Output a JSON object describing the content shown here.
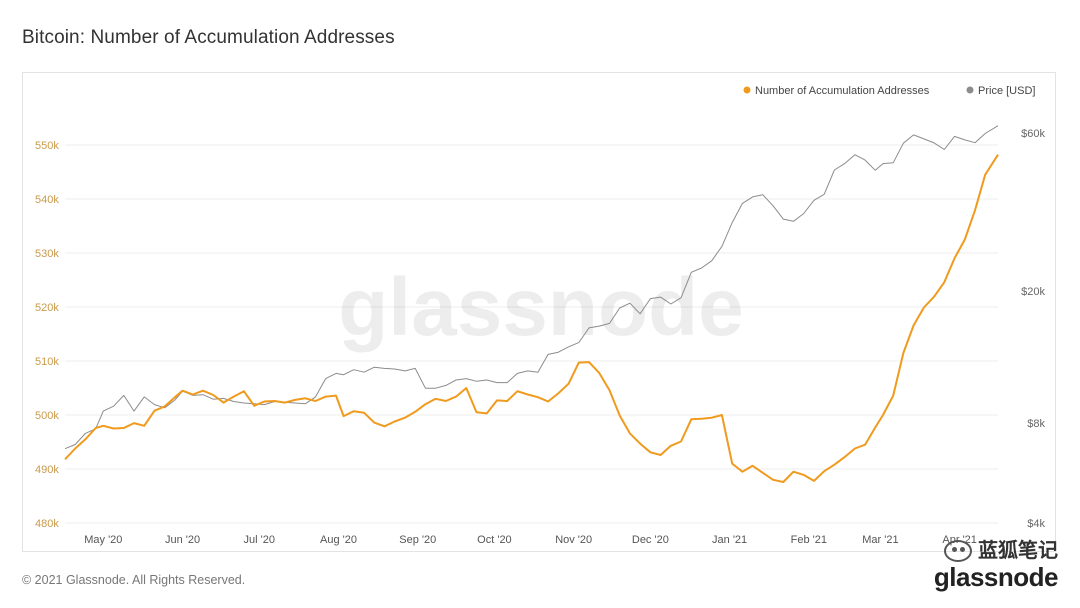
{
  "page": {
    "title": "Bitcoin: Number of Accumulation Addresses",
    "copyright": "© 2021 Glassnode. All Rights Reserved.",
    "watermark": "glassnode",
    "brand_cn": "蓝狐笔记",
    "brand_logo": "glassnode"
  },
  "colors": {
    "accumulation": "#f09a1e",
    "price": "#8c8c8c",
    "grid": "#ececec",
    "left_axis_text": "#c99a4a",
    "right_axis_text": "#666666"
  },
  "chart_data": {
    "type": "line",
    "title": "Bitcoin: Number of Accumulation Addresses",
    "legend_position": "top-right",
    "grid": true,
    "x_ticks": [
      "May '20",
      "Jun '20",
      "Jul '20",
      "Aug '20",
      "Sep '20",
      "Oct '20",
      "Nov '20",
      "Dec '20",
      "Jan '21",
      "Feb '21",
      "Mar '21",
      "Apr '21"
    ],
    "x_range": [
      "2020-04-16",
      "2021-04-16"
    ],
    "y_left": {
      "ticks": [
        480000,
        490000,
        500000,
        510000,
        520000,
        530000,
        540000,
        550000
      ],
      "tick_labels": [
        "480k",
        "490k",
        "500k",
        "510k",
        "520k",
        "530k",
        "540k",
        "550k"
      ],
      "range": [
        480000,
        555000
      ]
    },
    "y_right": {
      "scale": "log",
      "ticks": [
        4000,
        8000,
        20000,
        60000
      ],
      "tick_labels": [
        "$4k",
        "$8k",
        "$20k",
        "$60k"
      ],
      "range": [
        4000,
        60000
      ]
    },
    "series": [
      {
        "name": "Number of Accumulation Addresses",
        "axis": "left",
        "points": [
          [
            "2020-04-16",
            491800
          ],
          [
            "2020-04-20",
            493800
          ],
          [
            "2020-04-24",
            495500
          ],
          [
            "2020-04-28",
            497600
          ],
          [
            "2020-05-01",
            498000
          ],
          [
            "2020-05-05",
            497500
          ],
          [
            "2020-05-09",
            497600
          ],
          [
            "2020-05-13",
            498500
          ],
          [
            "2020-05-17",
            498000
          ],
          [
            "2020-05-21",
            500800
          ],
          [
            "2020-05-25",
            501600
          ],
          [
            "2020-05-29",
            503300
          ],
          [
            "2020-06-01",
            504500
          ],
          [
            "2020-06-05",
            503800
          ],
          [
            "2020-06-09",
            504500
          ],
          [
            "2020-06-13",
            503700
          ],
          [
            "2020-06-17",
            502300
          ],
          [
            "2020-06-21",
            503400
          ],
          [
            "2020-06-25",
            504400
          ],
          [
            "2020-06-29",
            501700
          ],
          [
            "2020-07-03",
            502500
          ],
          [
            "2020-07-07",
            502600
          ],
          [
            "2020-07-11",
            502300
          ],
          [
            "2020-07-15",
            502800
          ],
          [
            "2020-07-19",
            503100
          ],
          [
            "2020-07-23",
            502600
          ],
          [
            "2020-07-27",
            503400
          ],
          [
            "2020-07-31",
            503600
          ],
          [
            "2020-08-03",
            499800
          ],
          [
            "2020-08-07",
            500700
          ],
          [
            "2020-08-11",
            500400
          ],
          [
            "2020-08-15",
            498600
          ],
          [
            "2020-08-19",
            497900
          ],
          [
            "2020-08-23",
            498800
          ],
          [
            "2020-08-27",
            499500
          ],
          [
            "2020-08-31",
            500600
          ],
          [
            "2020-09-04",
            502000
          ],
          [
            "2020-09-08",
            503000
          ],
          [
            "2020-09-12",
            502600
          ],
          [
            "2020-09-16",
            503400
          ],
          [
            "2020-09-20",
            505000
          ],
          [
            "2020-09-24",
            500500
          ],
          [
            "2020-09-28",
            500300
          ],
          [
            "2020-10-02",
            502700
          ],
          [
            "2020-10-06",
            502600
          ],
          [
            "2020-10-10",
            504400
          ],
          [
            "2020-10-14",
            503800
          ],
          [
            "2020-10-18",
            503300
          ],
          [
            "2020-10-22",
            502500
          ],
          [
            "2020-10-26",
            504000
          ],
          [
            "2020-10-30",
            505800
          ],
          [
            "2020-11-03",
            509700
          ],
          [
            "2020-11-07",
            509800
          ],
          [
            "2020-11-11",
            507800
          ],
          [
            "2020-11-15",
            504600
          ],
          [
            "2020-11-19",
            499900
          ],
          [
            "2020-11-23",
            496600
          ],
          [
            "2020-11-27",
            494700
          ],
          [
            "2020-12-01",
            493100
          ],
          [
            "2020-12-05",
            492600
          ],
          [
            "2020-12-09",
            494300
          ],
          [
            "2020-12-13",
            495100
          ],
          [
            "2020-12-17",
            499200
          ],
          [
            "2020-12-21",
            499300
          ],
          [
            "2020-12-25",
            499500
          ],
          [
            "2020-12-29",
            500000
          ],
          [
            "2021-01-02",
            491000
          ],
          [
            "2021-01-06",
            489500
          ],
          [
            "2021-01-10",
            490600
          ],
          [
            "2021-01-14",
            489300
          ],
          [
            "2021-01-18",
            488000
          ],
          [
            "2021-01-22",
            487600
          ],
          [
            "2021-01-26",
            489500
          ],
          [
            "2021-01-30",
            488900
          ],
          [
            "2021-02-03",
            487800
          ],
          [
            "2021-02-07",
            489600
          ],
          [
            "2021-02-11",
            490800
          ],
          [
            "2021-02-15",
            492200
          ],
          [
            "2021-02-19",
            493800
          ],
          [
            "2021-02-23",
            494500
          ],
          [
            "2021-02-27",
            497700
          ],
          [
            "2021-03-02",
            500000
          ],
          [
            "2021-03-06",
            503600
          ],
          [
            "2021-03-10",
            511500
          ],
          [
            "2021-03-14",
            516600
          ],
          [
            "2021-03-18",
            519900
          ],
          [
            "2021-03-22",
            521900
          ],
          [
            "2021-03-26",
            524600
          ],
          [
            "2021-03-30",
            529000
          ],
          [
            "2021-04-03",
            532500
          ],
          [
            "2021-04-07",
            537900
          ],
          [
            "2021-04-11",
            544500
          ],
          [
            "2021-04-16",
            548200
          ]
        ]
      },
      {
        "name": "Price [USD]",
        "axis": "right",
        "points": [
          [
            "2020-04-16",
            6700
          ],
          [
            "2020-04-20",
            6900
          ],
          [
            "2020-04-24",
            7450
          ],
          [
            "2020-04-28",
            7700
          ],
          [
            "2020-05-01",
            8700
          ],
          [
            "2020-05-05",
            9000
          ],
          [
            "2020-05-09",
            9700
          ],
          [
            "2020-05-13",
            8700
          ],
          [
            "2020-05-17",
            9600
          ],
          [
            "2020-05-21",
            9100
          ],
          [
            "2020-05-25",
            8900
          ],
          [
            "2020-05-29",
            9400
          ],
          [
            "2020-06-01",
            10000
          ],
          [
            "2020-06-05",
            9700
          ],
          [
            "2020-06-09",
            9750
          ],
          [
            "2020-06-13",
            9450
          ],
          [
            "2020-06-17",
            9500
          ],
          [
            "2020-06-21",
            9300
          ],
          [
            "2020-06-25",
            9200
          ],
          [
            "2020-06-29",
            9150
          ],
          [
            "2020-07-03",
            9100
          ],
          [
            "2020-07-07",
            9300
          ],
          [
            "2020-07-11",
            9250
          ],
          [
            "2020-07-15",
            9200
          ],
          [
            "2020-07-19",
            9150
          ],
          [
            "2020-07-23",
            9600
          ],
          [
            "2020-07-27",
            10900
          ],
          [
            "2020-07-31",
            11300
          ],
          [
            "2020-08-03",
            11200
          ],
          [
            "2020-08-07",
            11600
          ],
          [
            "2020-08-11",
            11400
          ],
          [
            "2020-08-15",
            11800
          ],
          [
            "2020-08-19",
            11700
          ],
          [
            "2020-08-23",
            11650
          ],
          [
            "2020-08-27",
            11500
          ],
          [
            "2020-08-31",
            11700
          ],
          [
            "2020-09-04",
            10200
          ],
          [
            "2020-09-08",
            10200
          ],
          [
            "2020-09-12",
            10400
          ],
          [
            "2020-09-16",
            10800
          ],
          [
            "2020-09-20",
            10900
          ],
          [
            "2020-09-24",
            10700
          ],
          [
            "2020-09-28",
            10800
          ],
          [
            "2020-10-02",
            10600
          ],
          [
            "2020-10-06",
            10600
          ],
          [
            "2020-10-10",
            11300
          ],
          [
            "2020-10-14",
            11500
          ],
          [
            "2020-10-18",
            11400
          ],
          [
            "2020-10-22",
            12900
          ],
          [
            "2020-10-26",
            13100
          ],
          [
            "2020-10-30",
            13600
          ],
          [
            "2020-11-03",
            14000
          ],
          [
            "2020-11-07",
            15500
          ],
          [
            "2020-11-11",
            15700
          ],
          [
            "2020-11-15",
            16000
          ],
          [
            "2020-11-19",
            17800
          ],
          [
            "2020-11-23",
            18400
          ],
          [
            "2020-11-27",
            17100
          ],
          [
            "2020-12-01",
            19000
          ],
          [
            "2020-12-05",
            19200
          ],
          [
            "2020-12-09",
            18300
          ],
          [
            "2020-12-13",
            19100
          ],
          [
            "2020-12-17",
            22800
          ],
          [
            "2020-12-21",
            23500
          ],
          [
            "2020-12-25",
            24700
          ],
          [
            "2020-12-29",
            27300
          ],
          [
            "2021-01-02",
            32200
          ],
          [
            "2021-01-06",
            36800
          ],
          [
            "2021-01-10",
            38500
          ],
          [
            "2021-01-14",
            39100
          ],
          [
            "2021-01-18",
            36200
          ],
          [
            "2021-01-22",
            33000
          ],
          [
            "2021-01-26",
            32500
          ],
          [
            "2021-01-30",
            34300
          ],
          [
            "2021-02-03",
            37600
          ],
          [
            "2021-02-07",
            39200
          ],
          [
            "2021-02-11",
            46400
          ],
          [
            "2021-02-15",
            48500
          ],
          [
            "2021-02-19",
            51600
          ],
          [
            "2021-02-23",
            49700
          ],
          [
            "2021-02-27",
            46300
          ],
          [
            "2021-03-02",
            48500
          ],
          [
            "2021-03-06",
            48800
          ],
          [
            "2021-03-10",
            55900
          ],
          [
            "2021-03-14",
            59200
          ],
          [
            "2021-03-18",
            57600
          ],
          [
            "2021-03-22",
            56000
          ],
          [
            "2021-03-26",
            53500
          ],
          [
            "2021-03-30",
            58600
          ],
          [
            "2021-04-03",
            57200
          ],
          [
            "2021-04-07",
            56100
          ],
          [
            "2021-04-11",
            59800
          ],
          [
            "2021-04-16",
            63100
          ]
        ]
      }
    ]
  }
}
